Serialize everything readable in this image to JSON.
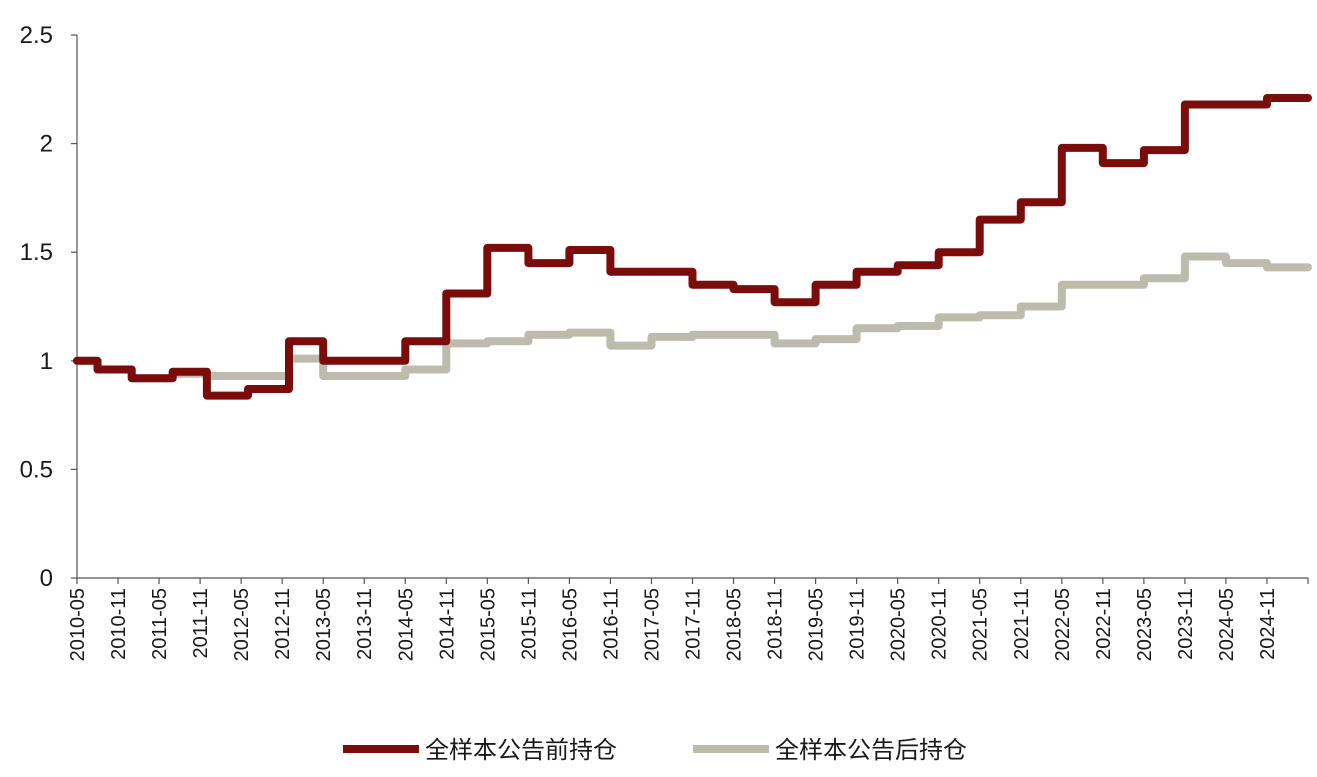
{
  "chart_data": {
    "type": "line",
    "title": "",
    "xlabel": "",
    "ylabel": "",
    "ylim": [
      0,
      2.5
    ],
    "yticks": [
      "0",
      "0.5",
      "1",
      "1.5",
      "2",
      "2.5"
    ],
    "x_tick_labels": [
      "2010-05",
      "2010-11",
      "2011-05",
      "2011-11",
      "2012-05",
      "2012-11",
      "2013-05",
      "2013-11",
      "2014-05",
      "2014-11",
      "2015-05",
      "2015-11",
      "2016-05",
      "2016-11",
      "2017-05",
      "2017-11",
      "2018-05",
      "2018-11",
      "2019-05",
      "2019-11",
      "2020-05",
      "2020-11",
      "2021-05",
      "2021-11",
      "2022-05",
      "2022-11",
      "2023-05",
      "2023-11",
      "2024-05",
      "2024-11"
    ],
    "x_range": [
      "2010-05",
      "2025-05"
    ],
    "grid": false,
    "legend_position": "bottom",
    "series": [
      {
        "name": "全样本公告前持仓",
        "color": "#7a0c0c",
        "points": [
          [
            "2010-05",
            1.0
          ],
          [
            "2010-08",
            0.96
          ],
          [
            "2011-01",
            0.92
          ],
          [
            "2011-07",
            0.95
          ],
          [
            "2011-12",
            0.84
          ],
          [
            "2012-06",
            0.87
          ],
          [
            "2012-12",
            1.09
          ],
          [
            "2013-05",
            1.0
          ],
          [
            "2014-05",
            1.09
          ],
          [
            "2014-11",
            1.31
          ],
          [
            "2015-05",
            1.52
          ],
          [
            "2015-11",
            1.45
          ],
          [
            "2016-05",
            1.51
          ],
          [
            "2016-11",
            1.41
          ],
          [
            "2017-05",
            1.41
          ],
          [
            "2017-11",
            1.35
          ],
          [
            "2018-05",
            1.33
          ],
          [
            "2018-11",
            1.27
          ],
          [
            "2019-05",
            1.35
          ],
          [
            "2019-11",
            1.41
          ],
          [
            "2020-05",
            1.44
          ],
          [
            "2020-11",
            1.5
          ],
          [
            "2021-05",
            1.65
          ],
          [
            "2021-11",
            1.73
          ],
          [
            "2022-05",
            1.98
          ],
          [
            "2022-11",
            1.91
          ],
          [
            "2023-05",
            1.97
          ],
          [
            "2023-11",
            2.18
          ],
          [
            "2024-05",
            2.18
          ],
          [
            "2024-11",
            2.21
          ],
          [
            "2025-05",
            2.21
          ]
        ]
      },
      {
        "name": "全样本公告后持仓",
        "color": "#bdbcac",
        "points": [
          [
            "2010-05",
            1.0
          ],
          [
            "2010-08",
            0.96
          ],
          [
            "2011-01",
            0.92
          ],
          [
            "2011-07",
            0.94
          ],
          [
            "2011-12",
            0.93
          ],
          [
            "2012-06",
            0.93
          ],
          [
            "2012-12",
            1.01
          ],
          [
            "2013-05",
            0.93
          ],
          [
            "2014-05",
            0.96
          ],
          [
            "2014-11",
            1.08
          ],
          [
            "2015-05",
            1.09
          ],
          [
            "2015-11",
            1.12
          ],
          [
            "2016-05",
            1.13
          ],
          [
            "2016-11",
            1.07
          ],
          [
            "2017-05",
            1.11
          ],
          [
            "2017-11",
            1.12
          ],
          [
            "2018-05",
            1.12
          ],
          [
            "2018-11",
            1.08
          ],
          [
            "2019-05",
            1.1
          ],
          [
            "2019-11",
            1.15
          ],
          [
            "2020-05",
            1.16
          ],
          [
            "2020-11",
            1.2
          ],
          [
            "2021-05",
            1.21
          ],
          [
            "2021-11",
            1.25
          ],
          [
            "2022-05",
            1.35
          ],
          [
            "2022-11",
            1.35
          ],
          [
            "2023-05",
            1.38
          ],
          [
            "2023-11",
            1.48
          ],
          [
            "2024-05",
            1.45
          ],
          [
            "2024-11",
            1.43
          ],
          [
            "2025-05",
            1.43
          ]
        ]
      }
    ]
  }
}
